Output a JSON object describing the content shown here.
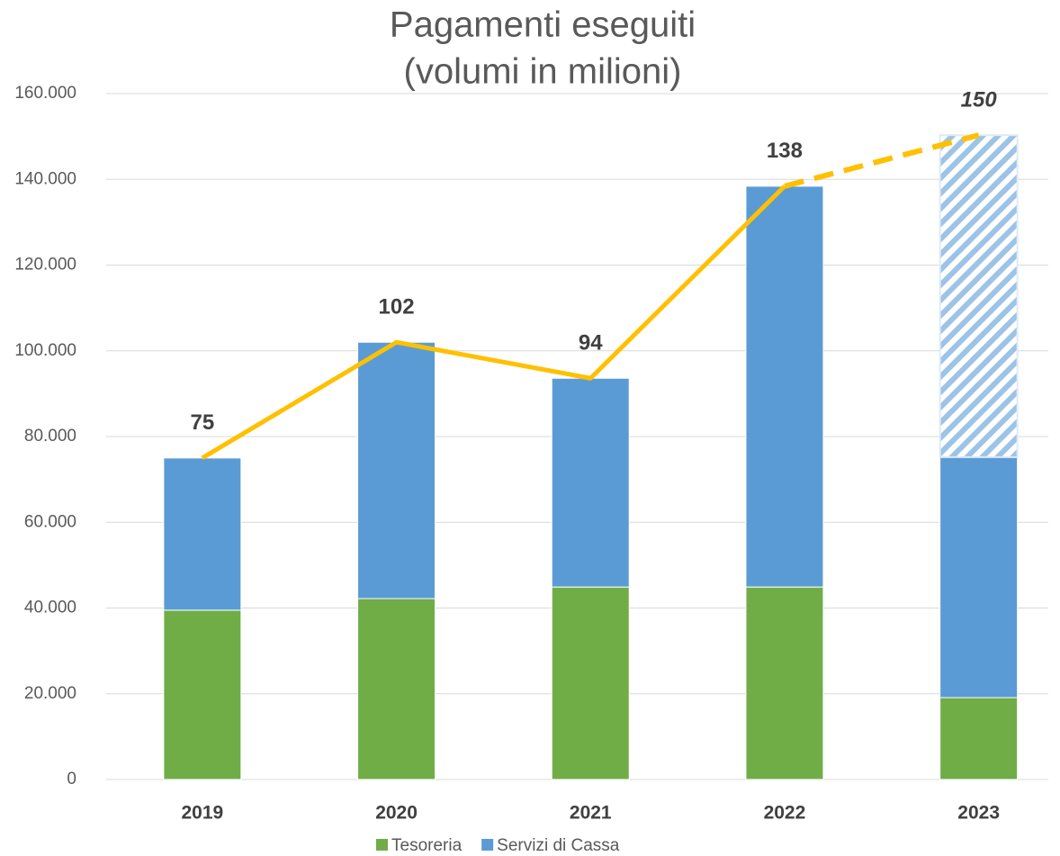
{
  "chart_data": {
    "type": "bar",
    "title": "Pagamenti eseguiti",
    "subtitle": "(volumi in milioni)",
    "categories": [
      "2019",
      "2020",
      "2021",
      "2022",
      "2023"
    ],
    "stacked": true,
    "series": [
      {
        "name": "Tesoreria",
        "color": "#70ad47",
        "values": [
          39500,
          42200,
          44900,
          44900,
          19100
        ]
      },
      {
        "name": "Servizi di Cassa",
        "color": "#5b9bd5",
        "values": [
          35500,
          59800,
          48700,
          93500,
          56100
        ]
      },
      {
        "color": "#9dc3e6",
        "hatch": true,
        "values": [
          null,
          null,
          null,
          null,
          75100
        ]
      }
    ],
    "line": {
      "color": "#ffc000",
      "values": [
        75000,
        102000,
        93600,
        138400,
        150300
      ],
      "value_labels": [
        "75",
        "102",
        "94",
        "138",
        "150"
      ],
      "projected_index": 4
    },
    "ylim": [
      0,
      160000
    ],
    "yticks": [
      0,
      {
        "value": 20000,
        "label": "20.000"
      },
      {
        "value": 40000,
        "label": "40.000"
      },
      {
        "value": 60000,
        "label": "60.000"
      },
      {
        "value": 80000,
        "label": "80.000"
      },
      {
        "value": 100000,
        "label": "100.000"
      },
      {
        "value": 120000,
        "label": "120.000"
      },
      {
        "value": 140000,
        "label": "140.000"
      },
      {
        "value": 160000,
        "label": "160.000"
      }
    ],
    "grid": true,
    "legend": "bottom"
  }
}
